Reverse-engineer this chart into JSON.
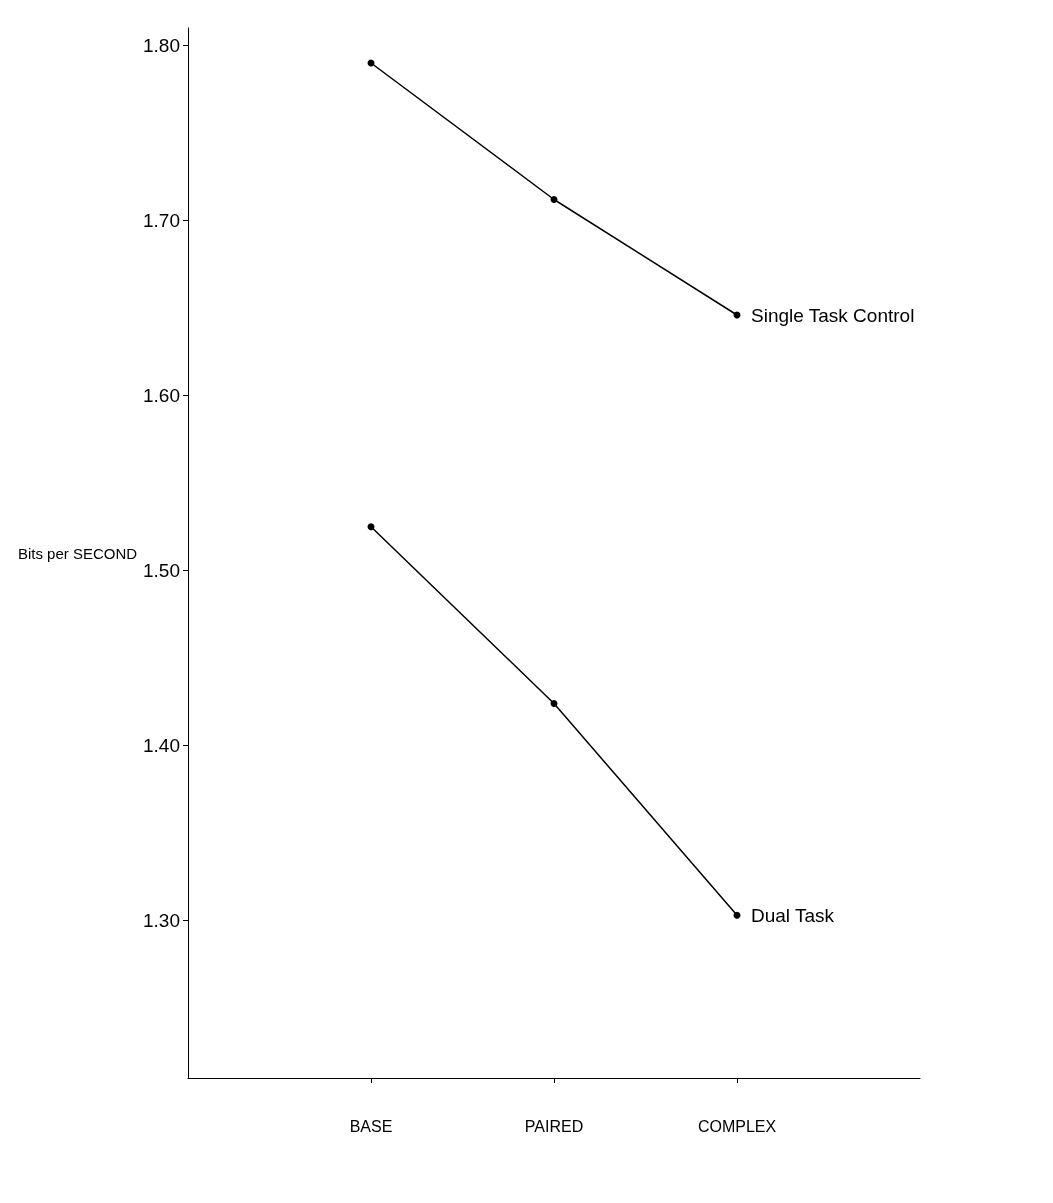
{
  "chart_data": {
    "type": "line",
    "ylabel": "Bits per SECOND",
    "categories": [
      "BASE",
      "PAIRED",
      "COMPLEX"
    ],
    "series": [
      {
        "name": "Single Task Control",
        "color": "#000000",
        "values": [
          1.79,
          1.712,
          1.646
        ]
      },
      {
        "name": "Dual Task",
        "color": "#000000",
        "values": [
          1.525,
          1.424,
          1.303
        ]
      }
    ],
    "ylim": [
      1.21,
      1.81
    ],
    "yticks": [
      {
        "value": 1.3,
        "label": "1.30"
      },
      {
        "value": 1.4,
        "label": "1.40"
      },
      {
        "value": 1.5,
        "label": "1.50"
      },
      {
        "value": 1.6,
        "label": "1.60"
      },
      {
        "value": 1.7,
        "label": "1.70"
      },
      {
        "value": 1.8,
        "label": "1.80"
      }
    ],
    "grid": false,
    "marker": "circle",
    "line_style": "solid"
  }
}
